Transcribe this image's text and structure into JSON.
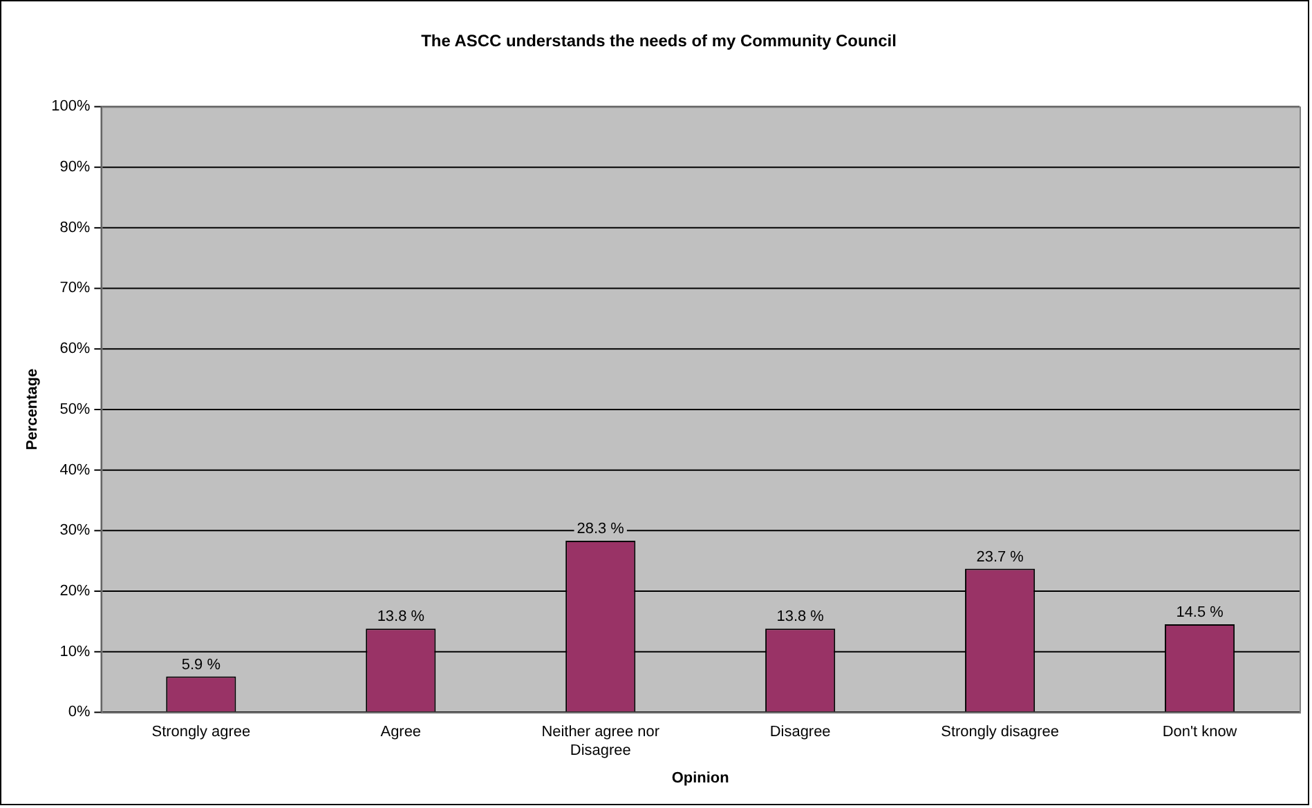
{
  "chart_data": {
    "type": "bar",
    "title": "The ASCC understands the needs of my Community Council",
    "xlabel": "Opinion",
    "ylabel": "Percentage",
    "categories": [
      "Strongly agree",
      "Agree",
      "Neither agree nor Disagree",
      "Disagree",
      "Strongly disagree",
      "Don't know"
    ],
    "values": [
      5.9,
      13.8,
      28.3,
      13.8,
      23.7,
      14.5
    ],
    "value_labels": [
      "5.9 %",
      "13.8 %",
      "28.3 %",
      "13.8 %",
      "23.7 %",
      "14.5 %"
    ],
    "color": "#993366",
    "ylim": [
      0,
      100
    ],
    "yticks": [
      {
        "value": 0,
        "label": "0%"
      },
      {
        "value": 10,
        "label": "10%"
      },
      {
        "value": 20,
        "label": "20%"
      },
      {
        "value": 30,
        "label": "30%"
      },
      {
        "value": 40,
        "label": "40%"
      },
      {
        "value": 50,
        "label": "50%"
      },
      {
        "value": 60,
        "label": "60%"
      },
      {
        "value": 70,
        "label": "70%"
      },
      {
        "value": 80,
        "label": "80%"
      },
      {
        "value": 90,
        "label": "90%"
      },
      {
        "value": 100,
        "label": "100%"
      }
    ],
    "grid": "y",
    "legend": false
  }
}
